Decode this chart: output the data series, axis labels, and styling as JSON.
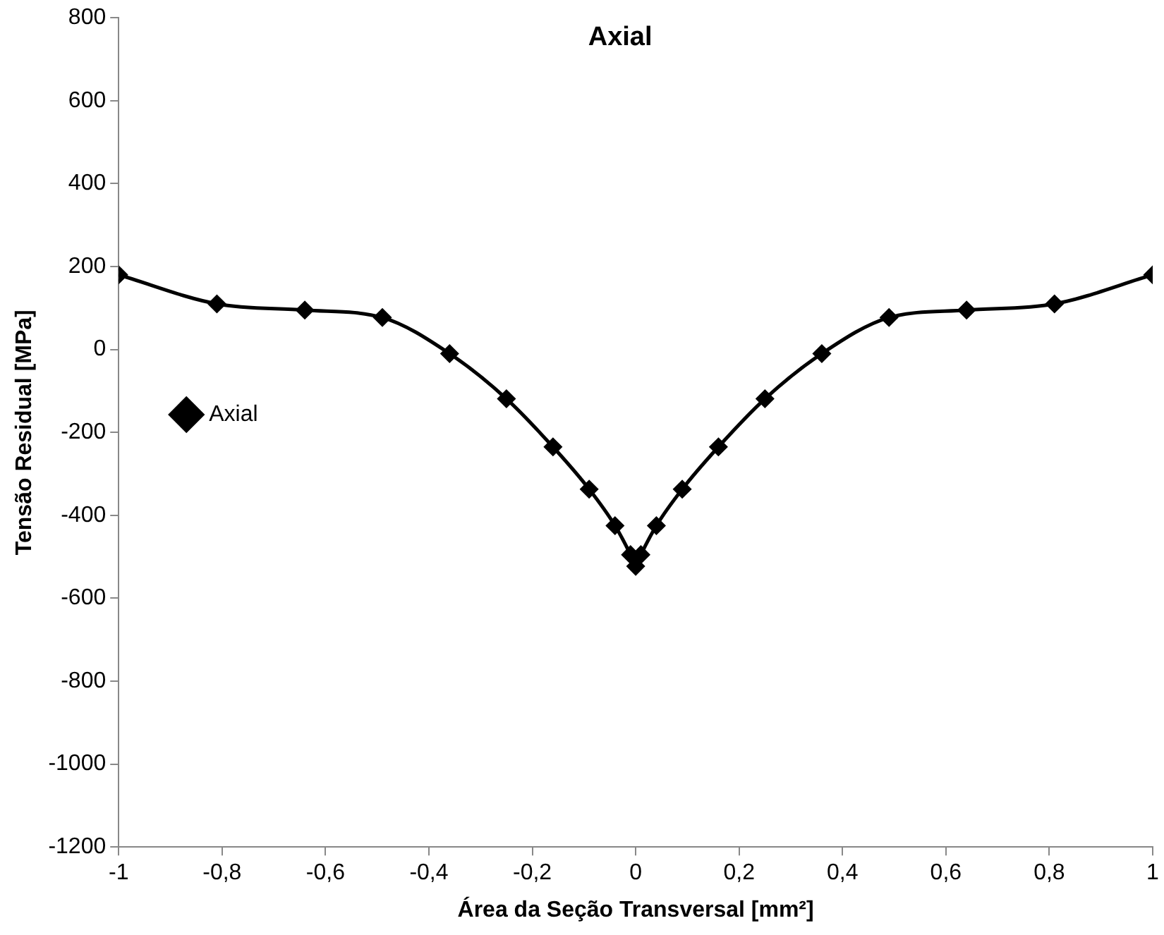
{
  "chart_data": {
    "type": "line",
    "title": "Axial",
    "xlabel": "Área da Seção Transversal [mm²]",
    "ylabel": "Tensão Residual [MPa]",
    "x": [
      -1,
      -0.81,
      -0.64,
      -0.49,
      -0.36,
      -0.25,
      -0.16,
      -0.09,
      -0.04,
      -0.01,
      0,
      0.01,
      0.04,
      0.09,
      0.16,
      0.25,
      0.36,
      0.49,
      0.64,
      0.81,
      1
    ],
    "series": [
      {
        "name": "Axial",
        "color": "#000000",
        "values": [
          180,
          110,
          95,
          77,
          -10,
          -119,
          -235,
          -337,
          -425,
          -495,
          -523,
          -495,
          -425,
          -337,
          -235,
          -119,
          -10,
          77,
          95,
          110,
          180
        ]
      }
    ],
    "xlim": [
      -1,
      1
    ],
    "xticks": [
      -1,
      {
        "value": -0.8,
        "label": "-0,8"
      },
      {
        "value": -0.6,
        "label": "-0,6"
      },
      {
        "value": -0.4,
        "label": "-0,4"
      },
      {
        "value": -0.2,
        "label": "-0,2"
      },
      0,
      {
        "value": 0.2,
        "label": "0,2"
      },
      {
        "value": 0.4,
        "label": "0,4"
      },
      {
        "value": 0.6,
        "label": "0,6"
      },
      {
        "value": 0.8,
        "label": "0,8"
      },
      1
    ],
    "ylim": [
      -1200,
      800
    ],
    "yticks": [
      -1200,
      -1000,
      -800,
      -600,
      -400,
      -200,
      0,
      200,
      400,
      600,
      800
    ],
    "grid": false,
    "legend": "top",
    "marker": "diamond",
    "line_style": "solid"
  }
}
